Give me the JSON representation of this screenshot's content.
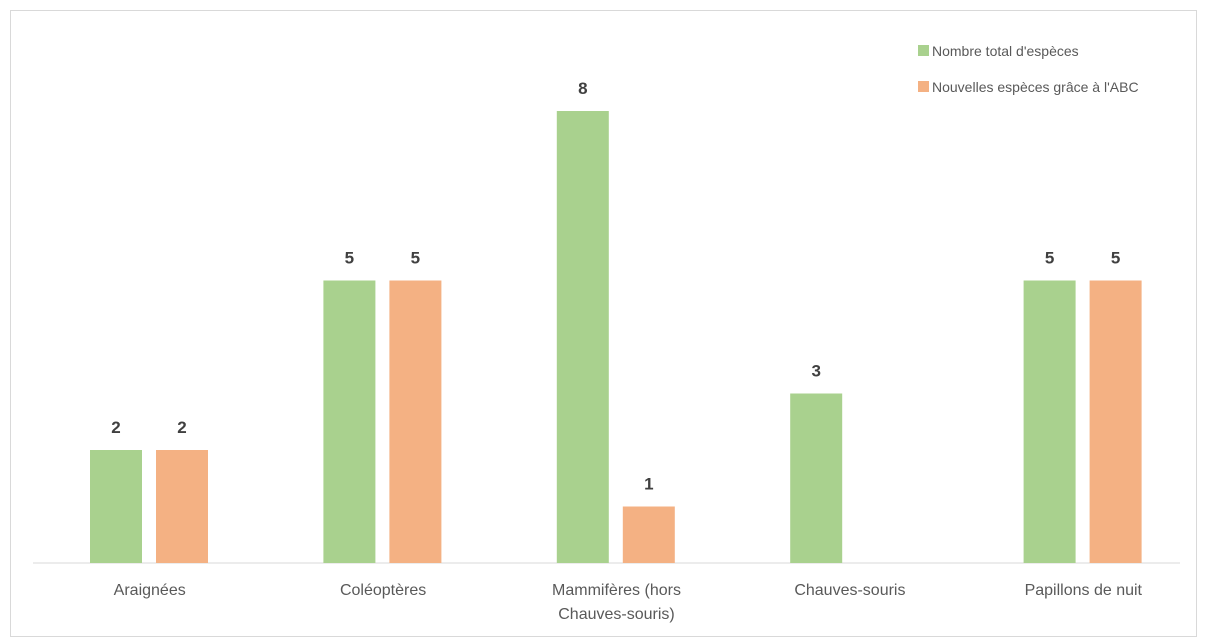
{
  "chart_data": {
    "type": "bar",
    "title": "",
    "xlabel": "",
    "ylabel": "",
    "ylim": [
      0,
      9
    ],
    "grid": false,
    "legend_position": "top-right",
    "categories": [
      [
        "Araignées"
      ],
      [
        "Coléoptères"
      ],
      [
        "Mammifères (hors",
        "Chauves-souris)"
      ],
      [
        "Chauves-souris"
      ],
      [
        "Papillons de nuit"
      ]
    ],
    "series": [
      {
        "name": "Nombre total d'espèces",
        "color": "#a9d18e",
        "values": [
          2,
          5,
          8,
          3,
          5
        ]
      },
      {
        "name": "Nouvelles espèces grâce à l'ABC",
        "color": "#f4b183",
        "values": [
          2,
          5,
          1,
          null,
          5
        ]
      }
    ]
  }
}
